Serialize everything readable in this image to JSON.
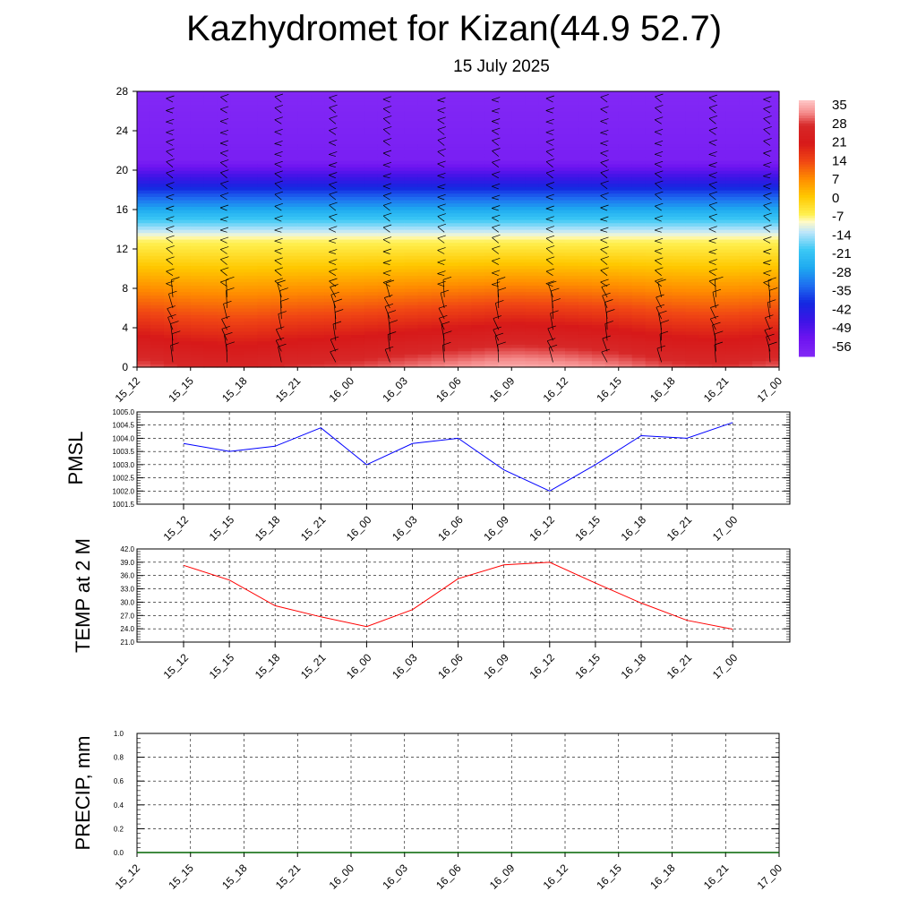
{
  "header": {
    "title": "Kazhydromet for Kizan(44.9 52.7)",
    "subtitle": "15 July 2025"
  },
  "time_labels": [
    "15_12",
    "15_15",
    "15_18",
    "15_21",
    "16_00",
    "16_03",
    "16_06",
    "16_09",
    "16_12",
    "16_15",
    "16_18",
    "16_21",
    "17_00"
  ],
  "chart_data": [
    {
      "type": "heatmap",
      "name": "cross-section",
      "x": [
        "15_12",
        "15_15",
        "15_18",
        "15_21",
        "16_00",
        "16_03",
        "16_06",
        "16_09",
        "16_12",
        "16_15",
        "16_18",
        "16_21",
        "17_00"
      ],
      "y_ticks": [
        0,
        4,
        8,
        12,
        16,
        20,
        24,
        28
      ],
      "ylim": [
        0,
        28
      ],
      "surface_values": [
        31,
        28,
        27,
        29,
        30,
        32,
        34,
        36,
        35,
        33,
        30,
        29,
        31
      ],
      "colorbar_labels": [
        "35",
        "28",
        "21",
        "14",
        "7",
        "0",
        "-7",
        "-14",
        "-21",
        "-28",
        "-35",
        "-42",
        "-49",
        "-56"
      ],
      "colorbar_range": [
        -63,
        38
      ],
      "has_wind_barbs": true
    },
    {
      "type": "line",
      "name": "pmsl",
      "ylabel": "PMSL",
      "x": [
        "15_12",
        "15_15",
        "15_18",
        "15_21",
        "16_00",
        "16_03",
        "16_06",
        "16_09",
        "16_12",
        "16_15",
        "16_18",
        "16_21",
        "17_00"
      ],
      "values": [
        1003.8,
        1003.5,
        1003.7,
        1004.4,
        1003.0,
        1003.8,
        1004.0,
        1002.8,
        1002.0,
        1003.0,
        1004.1,
        1004.0,
        1004.6
      ],
      "ylim": [
        1001.5,
        1005.0
      ],
      "y_ticks": [
        "1001.5",
        "1002.0",
        "1002.5",
        "1003.0",
        "1003.5",
        "1004.0",
        "1004.5",
        "1005.0"
      ],
      "color": "#0000ff",
      "grid": true
    },
    {
      "type": "line",
      "name": "temp2m",
      "ylabel": "TEMP at 2 M",
      "x": [
        "15_12",
        "15_15",
        "15_18",
        "15_21",
        "16_00",
        "16_03",
        "16_06",
        "16_09",
        "16_12",
        "16_15",
        "16_18",
        "16_21",
        "17_00"
      ],
      "values": [
        38.3,
        35.0,
        29.2,
        26.7,
        24.5,
        28.3,
        35.3,
        38.4,
        39.0,
        34.3,
        29.8,
        25.9,
        23.9
      ],
      "ylim": [
        21.0,
        42.0
      ],
      "y_ticks": [
        "21.0",
        "24.0",
        "27.0",
        "30.0",
        "33.0",
        "36.0",
        "39.0",
        "42.0"
      ],
      "color": "#ff0000",
      "grid": true
    },
    {
      "type": "line",
      "name": "precip",
      "ylabel": "PRECIP, mm",
      "x": [
        "15_12",
        "15_15",
        "15_18",
        "15_21",
        "16_00",
        "16_03",
        "16_06",
        "16_09",
        "16_12",
        "16_15",
        "16_18",
        "16_21",
        "17_00"
      ],
      "values": [
        0,
        0,
        0,
        0,
        0,
        0,
        0,
        0,
        0,
        0,
        0,
        0,
        0
      ],
      "ylim": [
        0.0,
        1.0
      ],
      "y_ticks": [
        "0.0",
        "0.2",
        "0.4",
        "0.6",
        "0.8",
        "1.0"
      ],
      "color": "#006400",
      "grid": true
    }
  ]
}
